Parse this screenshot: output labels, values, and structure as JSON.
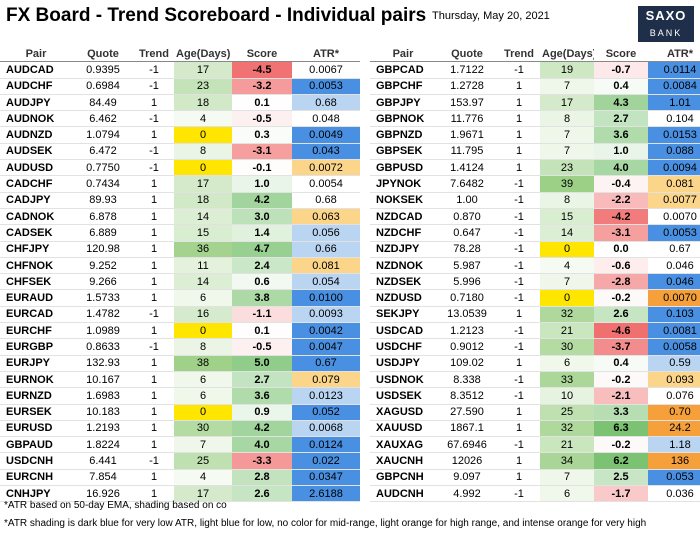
{
  "header": {
    "title": "FX Board - Trend Scoreboard - Individual pairs",
    "date": "Thursday, May 20, 2021",
    "logo": [
      "SAXO",
      "BANK"
    ]
  },
  "columns": [
    "Pair",
    "Quote",
    "Trend",
    "Age(Days)",
    "Score",
    "ATR*"
  ],
  "left": {
    "rows": [
      [
        "AUDCAD",
        "0.9395",
        "-1",
        "17",
        "-4.5",
        "0.0067",
        "#ffffff"
      ],
      [
        "AUDCHF",
        "0.6984",
        "-1",
        "23",
        "-3.2",
        "0.0053",
        "#4a90e2"
      ],
      [
        "AUDJPY",
        "84.49",
        "1",
        "18",
        "0.1",
        "0.68",
        "#b9d5f2"
      ],
      [
        "AUDNOK",
        "6.462",
        "-1",
        "4",
        "-0.5",
        "0.048",
        "#ffffff"
      ],
      [
        "AUDNZD",
        "1.0794",
        "1",
        "0",
        "0.3",
        "0.0049",
        "#4a90e2"
      ],
      [
        "AUDSEK",
        "6.472",
        "-1",
        "8",
        "-3.1",
        "0.043",
        "#4a90e2"
      ],
      [
        "AUDUSD",
        "0.7750",
        "-1",
        "0",
        "-0.1",
        "0.0072",
        "#fbd58a"
      ],
      [
        "CADCHF",
        "0.7434",
        "1",
        "17",
        "1.0",
        "0.0054",
        "#ffffff"
      ],
      [
        "CADJPY",
        "89.93",
        "1",
        "18",
        "4.2",
        "0.68",
        "#ffffff"
      ],
      [
        "CADNOK",
        "6.878",
        "1",
        "14",
        "3.0",
        "0.063",
        "#fbd58a"
      ],
      [
        "CADSEK",
        "6.889",
        "1",
        "15",
        "1.4",
        "0.056",
        "#b9d5f2"
      ],
      [
        "CHFJPY",
        "120.98",
        "1",
        "36",
        "4.7",
        "0.66",
        "#b9d5f2"
      ],
      [
        "CHFNOK",
        "9.252",
        "1",
        "11",
        "2.4",
        "0.081",
        "#fbd58a"
      ],
      [
        "CHFSEK",
        "9.266",
        "1",
        "14",
        "0.6",
        "0.054",
        "#b9d5f2"
      ],
      [
        "EURAUD",
        "1.5733",
        "1",
        "6",
        "3.8",
        "0.0100",
        "#4a90e2"
      ],
      [
        "EURCAD",
        "1.4782",
        "-1",
        "16",
        "-1.1",
        "0.0093",
        "#b9d5f2"
      ],
      [
        "EURCHF",
        "1.0989",
        "1",
        "0",
        "0.1",
        "0.0042",
        "#4a90e2"
      ],
      [
        "EURGBP",
        "0.8633",
        "-1",
        "8",
        "-0.5",
        "0.0047",
        "#4a90e2"
      ],
      [
        "EURJPY",
        "132.93",
        "1",
        "38",
        "5.0",
        "0.67",
        "#4a90e2"
      ],
      [
        "EURNOK",
        "10.167",
        "1",
        "6",
        "2.7",
        "0.079",
        "#fbd58a"
      ],
      [
        "EURNZD",
        "1.6983",
        "1",
        "6",
        "3.6",
        "0.0123",
        "#b9d5f2"
      ],
      [
        "EURSEK",
        "10.183",
        "1",
        "0",
        "0.9",
        "0.052",
        "#4a90e2"
      ],
      [
        "EURUSD",
        "1.2193",
        "1",
        "30",
        "4.2",
        "0.0068",
        "#b9d5f2"
      ],
      [
        "GBPAUD",
        "1.8224",
        "1",
        "7",
        "4.0",
        "0.0124",
        "#4a90e2"
      ],
      [
        "USDCNH",
        "6.441",
        "-1",
        "25",
        "-3.3",
        "0.022",
        "#4a90e2"
      ],
      [
        "EURCNH",
        "7.854",
        "1",
        "4",
        "2.8",
        "0.0347",
        "#4a90e2"
      ],
      [
        "CNHJPY",
        "16.926",
        "1",
        "17",
        "2.6",
        "2.6188",
        "#4a90e2"
      ]
    ]
  },
  "right": {
    "rows": [
      [
        "GBPCAD",
        "1.7122",
        "-1",
        "19",
        "-0.7",
        "0.0114",
        "#4a90e2"
      ],
      [
        "GBPCHF",
        "1.2728",
        "1",
        "7",
        "0.4",
        "0.0084",
        "#4a90e2"
      ],
      [
        "GBPJPY",
        "153.97",
        "1",
        "17",
        "4.3",
        "1.01",
        "#4a90e2"
      ],
      [
        "GBPNOK",
        "11.776",
        "1",
        "8",
        "2.7",
        "0.104",
        "#ffffff"
      ],
      [
        "GBPNZD",
        "1.9671",
        "1",
        "7",
        "3.6",
        "0.0153",
        "#4a90e2"
      ],
      [
        "GBPSEK",
        "11.795",
        "1",
        "7",
        "1.0",
        "0.088",
        "#4a90e2"
      ],
      [
        "GBPUSD",
        "1.4124",
        "1",
        "23",
        "4.0",
        "0.0094",
        "#4a90e2"
      ],
      [
        "JPYNOK",
        "7.6482",
        "-1",
        "39",
        "-0.4",
        "0.081",
        "#fbd58a"
      ],
      [
        "NOKSEK",
        "1.00",
        "-1",
        "8",
        "-2.2",
        "0.0077",
        "#fbd58a"
      ],
      [
        "NZDCAD",
        "0.870",
        "-1",
        "15",
        "-4.2",
        "0.0070",
        "#ffffff"
      ],
      [
        "NZDCHF",
        "0.647",
        "-1",
        "14",
        "-3.1",
        "0.0053",
        "#4a90e2"
      ],
      [
        "NZDJPY",
        "78.28",
        "-1",
        "0",
        "0.0",
        "0.67",
        "#ffffff"
      ],
      [
        "NZDNOK",
        "5.987",
        "-1",
        "4",
        "-0.6",
        "0.046",
        "#ffffff"
      ],
      [
        "NZDSEK",
        "5.996",
        "-1",
        "7",
        "-2.8",
        "0.046",
        "#4a90e2"
      ],
      [
        "NZDUSD",
        "0.7180",
        "-1",
        "0",
        "-0.2",
        "0.0070",
        "#f5a03a"
      ],
      [
        "SEKJPY",
        "13.0539",
        "1",
        "32",
        "2.6",
        "0.103",
        "#4a90e2"
      ],
      [
        "USDCAD",
        "1.2123",
        "-1",
        "21",
        "-4.6",
        "0.0081",
        "#4a90e2"
      ],
      [
        "USDCHF",
        "0.9012",
        "-1",
        "30",
        "-3.7",
        "0.0058",
        "#4a90e2"
      ],
      [
        "USDJPY",
        "109.02",
        "1",
        "6",
        "0.4",
        "0.59",
        "#b9d5f2"
      ],
      [
        "USDNOK",
        "8.338",
        "-1",
        "33",
        "-0.2",
        "0.093",
        "#fbd58a"
      ],
      [
        "USDSEK",
        "8.3512",
        "-1",
        "10",
        "-2.1",
        "0.076",
        "#ffffff"
      ],
      [
        "XAGUSD",
        "27.590",
        "1",
        "25",
        "3.3",
        "0.70",
        "#f5a03a"
      ],
      [
        "XAUUSD",
        "1867.1",
        "1",
        "32",
        "6.3",
        "24.2",
        "#f5a03a"
      ],
      [
        "XAUXAG",
        "67.6946",
        "-1",
        "21",
        "-0.2",
        "1.18",
        "#b9d5f2"
      ],
      [
        "XAUCNH",
        "12026",
        "1",
        "34",
        "6.2",
        "136",
        "#f5a03a"
      ],
      [
        "GBPCNH",
        "9.097",
        "1",
        "7",
        "2.5",
        "0.053",
        "#4a90e2"
      ],
      [
        "AUDCNH",
        "4.992",
        "-1",
        "6",
        "-1.7",
        "0.036",
        "#ffffff"
      ]
    ]
  },
  "footnotes": [
    "*ATR based on 50-day EMA, shading based on co",
    "*ATR shading is dark blue for very low ATR, light blue for low, no color for mid-range, light orange for high range, and intense orange for very high"
  ]
}
